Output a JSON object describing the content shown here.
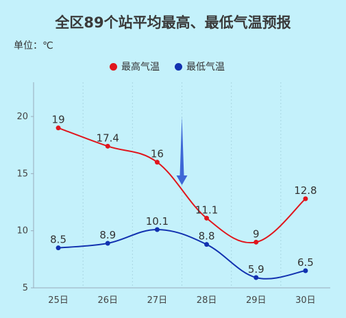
{
  "chart_data": {
    "type": "line",
    "title": "全区89个站平均最高、最低气温预报",
    "unit_label": "单位：℃",
    "categories": [
      "25日",
      "26日",
      "27日",
      "28日",
      "29日",
      "30日"
    ],
    "series": [
      {
        "name": "最高气温",
        "color": "#e0161d",
        "values": [
          19,
          17.4,
          16,
          11.1,
          9,
          12.8
        ]
      },
      {
        "name": "最低气温",
        "color": "#1232b0",
        "values": [
          8.5,
          8.9,
          10.1,
          8.8,
          5.9,
          6.5
        ]
      }
    ],
    "ylim": [
      5,
      20
    ],
    "y_ticks": [
      "5",
      "10",
      "15",
      "20"
    ],
    "grid": true,
    "legend": "top-center",
    "arrow_color": "#3d66d6"
  }
}
